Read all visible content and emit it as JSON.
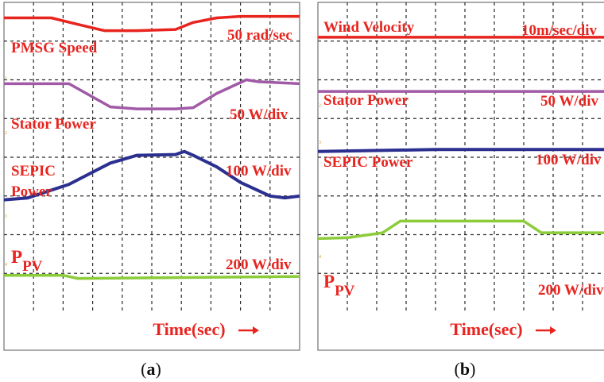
{
  "figure": {
    "panel_a_caption_open": "(",
    "panel_a_caption_letter": "a",
    "panel_a_caption_close": ")",
    "panel_b_caption_open": "(",
    "panel_b_caption_letter": "b",
    "panel_b_caption_close": ")"
  },
  "colors": {
    "trace_red": "#e8241f",
    "trace_purple": "#a05aa6",
    "trace_navy": "#2b2f8f",
    "trace_green": "#8ccc3a",
    "label_red": "#e8241f",
    "grid": "#2b2b2b",
    "frame": "#555555"
  },
  "chart_data": [
    {
      "type": "line",
      "panel": "a",
      "xlabel": "Time(sec) →",
      "grid": true,
      "divisions": {
        "x": 10,
        "y": 8
      },
      "channel_markers": [
        "1",
        "2",
        "3",
        "4"
      ],
      "series": [
        {
          "name": "PMSG Speed",
          "scale": "50 rad/sec",
          "color": "#e8241f",
          "x": [
            0,
            1.6,
            2.4,
            3.4,
            4.5,
            5.8,
            6.4,
            7.2,
            8.0,
            10
          ],
          "y": [
            7.6,
            7.6,
            7.45,
            7.27,
            7.27,
            7.3,
            7.48,
            7.6,
            7.64,
            7.64
          ]
        },
        {
          "name": "Stator Power",
          "scale": "50 W/div",
          "color": "#a05aa6",
          "x": [
            0,
            2.2,
            3.6,
            4.5,
            5.8,
            6.4,
            7.2,
            8.2,
            8.6,
            10
          ],
          "y": [
            5.9,
            5.9,
            5.3,
            5.25,
            5.25,
            5.28,
            5.65,
            6.0,
            5.95,
            5.9
          ]
        },
        {
          "name": "SEPIC Power",
          "scale": "100 W/div",
          "color": "#2b2f8f",
          "x": [
            0,
            0.8,
            2.2,
            3.6,
            4.5,
            5.8,
            6.1,
            6.4,
            7.2,
            8.0,
            9.0,
            9.5,
            10
          ],
          "y": [
            2.9,
            2.95,
            3.3,
            3.85,
            4.05,
            4.07,
            4.15,
            4.05,
            3.75,
            3.35,
            3.0,
            2.95,
            3.0
          ]
        },
        {
          "name": "P_PV",
          "scale": "200 W/div",
          "color": "#8ccc3a",
          "x": [
            0,
            2.0,
            2.5,
            10
          ],
          "y": [
            0.95,
            0.95,
            0.87,
            0.92
          ]
        }
      ],
      "labels": {
        "speed": "PMSG Speed",
        "speed_scale": "50 rad/sec",
        "stator": "Stator Power",
        "stator_scale": "50 W/div",
        "sepic_line1": "SEPIC",
        "sepic_line2": "Power",
        "sepic_scale": "100 W/div",
        "ppv_main": "P",
        "ppv_sub": "PV",
        "ppv_scale": "200 W/div"
      }
    },
    {
      "type": "line",
      "panel": "b",
      "xlabel": "Time(sec) →",
      "grid": true,
      "divisions": {
        "x": 10,
        "y": 8
      },
      "channel_markers": [
        "1",
        "2",
        "3",
        "4"
      ],
      "series": [
        {
          "name": "Wind Velocity",
          "scale": "10m/sec/div",
          "color": "#e8241f",
          "x": [
            0,
            10
          ],
          "y": [
            7.1,
            7.1
          ]
        },
        {
          "name": "Stator Power",
          "scale": "50 W/div",
          "color": "#a05aa6",
          "x": [
            0,
            10
          ],
          "y": [
            5.7,
            5.7
          ]
        },
        {
          "name": "SEPIC Power",
          "scale": "100 W/div",
          "color": "#2b2f8f",
          "x": [
            0,
            4.0,
            10
          ],
          "y": [
            4.15,
            4.2,
            4.2
          ]
        },
        {
          "name": "P_PV",
          "scale": "200 W/div",
          "color": "#8ccc3a",
          "x": [
            0,
            1.0,
            2.2,
            2.8,
            7.0,
            7.6,
            10
          ],
          "y": [
            1.9,
            1.92,
            2.05,
            2.35,
            2.35,
            2.05,
            2.05
          ]
        }
      ],
      "labels": {
        "wind": "Wind Velocity",
        "wind_scale": "10m/sec/div",
        "stator": "Stator Power",
        "stator_scale": "50 W/div",
        "sepic": "SEPIC Power",
        "sepic_scale": "100 W/div",
        "ppv_main": "P",
        "ppv_sub": "PV",
        "ppv_scale": "200 W/div"
      }
    }
  ]
}
